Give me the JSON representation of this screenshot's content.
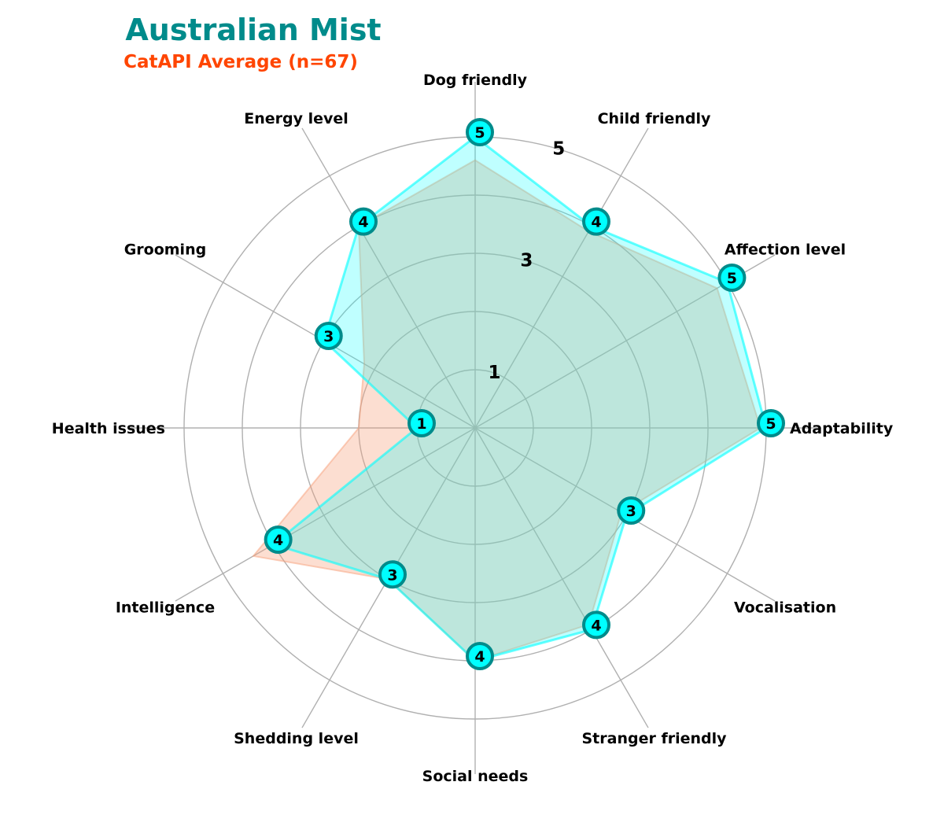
{
  "chart_data": {
    "type": "radar",
    "title": "Australian Mist",
    "subtitle": "CatAPI Average (n=67)",
    "axes": [
      "Dog friendly",
      "Child friendly",
      "Affection level",
      "Adaptability",
      "Vocalisation",
      "Stranger friendly",
      "Social needs",
      "Shedding level",
      "Intelligence",
      "Health issues",
      "Grooming",
      "Energy level"
    ],
    "rlim": [
      0,
      5
    ],
    "ring_ticks": [
      1,
      2,
      3,
      4,
      5
    ],
    "ring_labels": [
      "1",
      "3",
      "5"
    ],
    "grid": true,
    "series": [
      {
        "name": "Australian Mist",
        "values": [
          5,
          4,
          5,
          5,
          3,
          4,
          4,
          3,
          4,
          1,
          3,
          4
        ],
        "color": "#00ffff",
        "edge_color": "#008b8b"
      },
      {
        "name": "CatAPI Average (n=67)",
        "values": [
          4.6,
          3.9,
          4.8,
          4.9,
          2.9,
          3.9,
          4.0,
          3.0,
          4.4,
          2.0,
          2.2,
          4.0
        ],
        "color": "#f7a07a"
      }
    ]
  },
  "colors": {
    "title": "#008b8b",
    "subtitle": "#ff4500",
    "grid": "#b0b0b0"
  }
}
